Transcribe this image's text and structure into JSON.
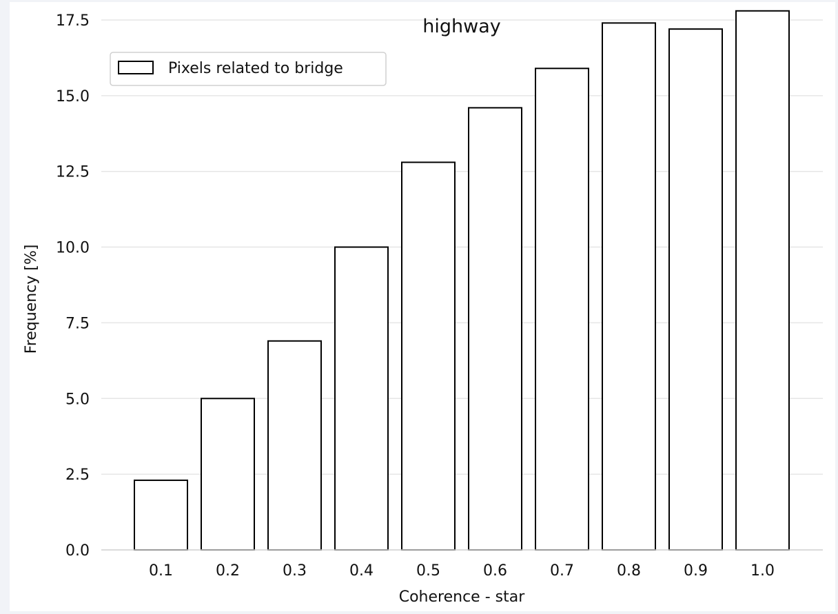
{
  "chart_data": {
    "type": "bar",
    "title": "highway",
    "xlabel": "Coherence - star",
    "ylabel": "Frequency [%]",
    "categories": [
      "0.1",
      "0.2",
      "0.3",
      "0.4",
      "0.5",
      "0.6",
      "0.7",
      "0.8",
      "0.9",
      "1.0"
    ],
    "series": [
      {
        "name": "Pixels related to bridge",
        "values": [
          2.3,
          5.0,
          6.9,
          10.0,
          12.8,
          14.6,
          15.9,
          17.4,
          17.2,
          17.8
        ]
      }
    ],
    "ylim": [
      0,
      18.0
    ],
    "yticks": [
      "0.0",
      "2.5",
      "5.0",
      "7.5",
      "10.0",
      "12.5",
      "15.0",
      "17.5"
    ],
    "grid": "horizontal",
    "legend_position": "top-left",
    "bar_fill": "#ffffff",
    "bar_edge": "#000000",
    "grid_color": "#e6e6e6"
  }
}
